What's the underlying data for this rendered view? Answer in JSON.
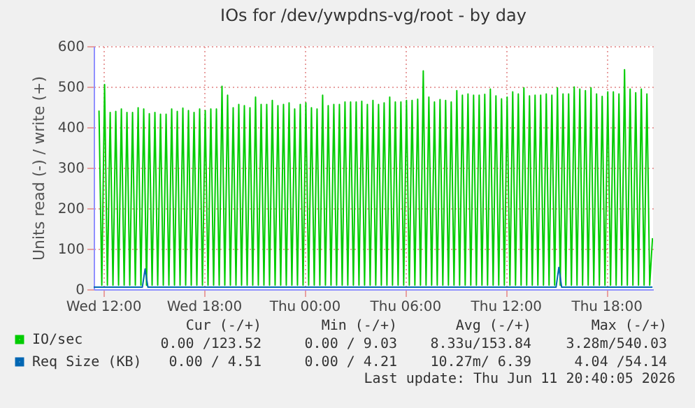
{
  "chart_data": {
    "type": "line",
    "title": "IOs for /dev/ywpdns-vg/root - by day",
    "ylabel": "Units read (-) / write (+)",
    "xlim": [
      "2026-06-10T11:26",
      "2026-06-11T20:47"
    ],
    "xticks": [
      {
        "value": "2026-06-10T12:00",
        "label": "Wed 12:00"
      },
      {
        "value": "2026-06-10T18:00",
        "label": "Wed 18:00"
      },
      {
        "value": "2026-06-11T00:00",
        "label": "Thu 00:00"
      },
      {
        "value": "2026-06-11T06:00",
        "label": "Thu 06:00"
      },
      {
        "value": "2026-06-11T12:00",
        "label": "Thu 12:00"
      },
      {
        "value": "2026-06-11T18:00",
        "label": "Thu 18:00"
      }
    ],
    "ylim": [
      0,
      600
    ],
    "yticks": [
      0,
      100,
      200,
      300,
      400,
      500,
      600
    ],
    "grid": true,
    "legend": "bottom left",
    "marker": "none",
    "line_style": "solid",
    "series": [
      {
        "name": "IO/sec",
        "color": "#00cc00",
        "x": [
          "2026-06-10T11:45",
          "2026-06-10T11:55",
          "2026-06-10T12:05",
          "2026-06-10T12:15",
          "2026-06-10T12:25",
          "2026-06-10T12:35",
          "2026-06-10T12:45",
          "2026-06-10T12:55",
          "2026-06-10T13:05",
          "2026-06-10T13:15",
          "2026-06-10T13:25",
          "2026-06-10T13:35",
          "2026-06-10T13:45",
          "2026-06-10T13:55",
          "2026-06-10T14:05",
          "2026-06-10T14:15",
          "2026-06-10T14:25",
          "2026-06-10T14:35",
          "2026-06-10T14:45",
          "2026-06-10T14:55",
          "2026-06-10T15:05",
          "2026-06-10T15:15",
          "2026-06-10T15:25",
          "2026-06-10T15:35",
          "2026-06-10T15:45",
          "2026-06-10T15:55",
          "2026-06-10T16:05",
          "2026-06-10T16:15",
          "2026-06-10T16:25",
          "2026-06-10T16:35",
          "2026-06-10T16:45",
          "2026-06-10T16:55",
          "2026-06-10T17:05",
          "2026-06-10T17:15",
          "2026-06-10T17:25",
          "2026-06-10T17:35",
          "2026-06-10T17:45",
          "2026-06-10T17:55",
          "2026-06-10T18:05",
          "2026-06-10T18:15",
          "2026-06-10T18:25",
          "2026-06-10T18:35",
          "2026-06-10T18:45",
          "2026-06-10T18:55",
          "2026-06-10T19:05",
          "2026-06-10T19:15",
          "2026-06-10T19:25",
          "2026-06-10T19:35",
          "2026-06-10T19:45",
          "2026-06-10T19:55",
          "2026-06-10T20:05",
          "2026-06-10T20:15",
          "2026-06-10T20:25",
          "2026-06-10T20:35",
          "2026-06-10T20:45",
          "2026-06-10T20:55",
          "2026-06-10T21:05",
          "2026-06-10T21:15",
          "2026-06-10T21:25",
          "2026-06-10T21:35",
          "2026-06-10T21:45",
          "2026-06-10T21:55",
          "2026-06-10T22:05",
          "2026-06-10T22:15",
          "2026-06-10T22:25",
          "2026-06-10T22:35",
          "2026-06-10T22:45",
          "2026-06-10T22:55",
          "2026-06-10T23:05",
          "2026-06-10T23:15",
          "2026-06-10T23:25",
          "2026-06-10T23:35",
          "2026-06-10T23:45",
          "2026-06-10T23:55",
          "2026-06-11T00:05",
          "2026-06-11T00:15",
          "2026-06-11T00:25",
          "2026-06-11T00:35",
          "2026-06-11T00:45",
          "2026-06-11T00:55",
          "2026-06-11T01:05",
          "2026-06-11T01:15",
          "2026-06-11T01:25",
          "2026-06-11T01:35",
          "2026-06-11T01:45",
          "2026-06-11T01:55",
          "2026-06-11T02:05",
          "2026-06-11T02:15",
          "2026-06-11T02:25",
          "2026-06-11T02:35",
          "2026-06-11T02:45",
          "2026-06-11T02:55",
          "2026-06-11T03:05",
          "2026-06-11T03:15",
          "2026-06-11T03:25",
          "2026-06-11T03:35",
          "2026-06-11T03:45",
          "2026-06-11T03:55",
          "2026-06-11T04:05",
          "2026-06-11T04:15",
          "2026-06-11T04:25",
          "2026-06-11T04:35",
          "2026-06-11T04:45",
          "2026-06-11T04:55",
          "2026-06-11T05:05",
          "2026-06-11T05:15",
          "2026-06-11T05:25",
          "2026-06-11T05:35",
          "2026-06-11T05:45",
          "2026-06-11T05:55",
          "2026-06-11T06:05",
          "2026-06-11T06:15",
          "2026-06-11T06:25",
          "2026-06-11T06:35",
          "2026-06-11T06:45",
          "2026-06-11T06:55",
          "2026-06-11T07:05",
          "2026-06-11T07:15",
          "2026-06-11T07:25",
          "2026-06-11T07:35",
          "2026-06-11T07:45",
          "2026-06-11T07:55",
          "2026-06-11T08:05",
          "2026-06-11T08:15",
          "2026-06-11T08:25",
          "2026-06-11T08:35",
          "2026-06-11T08:45",
          "2026-06-11T08:55",
          "2026-06-11T09:05",
          "2026-06-11T09:15",
          "2026-06-11T09:25",
          "2026-06-11T09:35",
          "2026-06-11T09:45",
          "2026-06-11T09:55",
          "2026-06-11T10:05",
          "2026-06-11T10:15",
          "2026-06-11T10:25",
          "2026-06-11T10:35",
          "2026-06-11T10:45",
          "2026-06-11T10:55",
          "2026-06-11T11:05",
          "2026-06-11T11:15",
          "2026-06-11T11:25",
          "2026-06-11T11:35",
          "2026-06-11T11:45",
          "2026-06-11T11:55",
          "2026-06-11T12:05",
          "2026-06-11T12:15",
          "2026-06-11T12:25",
          "2026-06-11T12:35",
          "2026-06-11T12:45",
          "2026-06-11T12:55",
          "2026-06-11T13:05",
          "2026-06-11T13:15",
          "2026-06-11T13:25",
          "2026-06-11T13:35",
          "2026-06-11T13:45",
          "2026-06-11T13:55",
          "2026-06-11T14:05",
          "2026-06-11T14:15",
          "2026-06-11T14:25",
          "2026-06-11T14:35",
          "2026-06-11T14:45",
          "2026-06-11T14:55",
          "2026-06-11T15:05",
          "2026-06-11T15:15",
          "2026-06-11T15:25",
          "2026-06-11T15:35",
          "2026-06-11T15:45",
          "2026-06-11T15:55",
          "2026-06-11T16:05",
          "2026-06-11T16:15",
          "2026-06-11T16:25",
          "2026-06-11T16:35",
          "2026-06-11T16:45",
          "2026-06-11T16:55",
          "2026-06-11T17:05",
          "2026-06-11T17:15",
          "2026-06-11T17:25",
          "2026-06-11T17:35",
          "2026-06-11T17:45",
          "2026-06-11T17:55",
          "2026-06-11T18:05",
          "2026-06-11T18:15",
          "2026-06-11T18:25",
          "2026-06-11T18:35",
          "2026-06-11T18:45",
          "2026-06-11T18:55",
          "2026-06-11T19:05",
          "2026-06-11T19:15",
          "2026-06-11T19:25",
          "2026-06-11T19:35",
          "2026-06-11T19:45",
          "2026-06-11T19:55",
          "2026-06-11T20:05",
          "2026-06-11T20:15",
          "2026-06-11T20:25",
          "2026-06-11T20:35",
          "2026-06-11T20:45"
        ],
        "values": [
          441,
          10,
          505,
          10,
          436,
          10,
          439,
          10,
          445,
          10,
          436,
          10,
          436,
          10,
          448,
          10,
          445,
          10,
          433,
          10,
          436,
          10,
          432,
          10,
          432,
          10,
          445,
          10,
          439,
          10,
          447,
          10,
          441,
          10,
          436,
          10,
          445,
          10,
          441,
          10,
          445,
          10,
          445,
          10,
          501,
          10,
          479,
          10,
          448,
          10,
          456,
          10,
          453,
          10,
          448,
          10,
          474,
          10,
          456,
          10,
          456,
          10,
          466,
          10,
          453,
          10,
          456,
          10,
          460,
          10,
          445,
          10,
          456,
          10,
          460,
          10,
          448,
          10,
          445,
          10,
          479,
          10,
          453,
          10,
          456,
          10,
          456,
          10,
          462,
          10,
          462,
          10,
          462,
          10,
          464,
          10,
          456,
          10,
          466,
          10,
          456,
          10,
          460,
          10,
          474,
          10,
          462,
          10,
          462,
          10,
          466,
          10,
          466,
          10,
          469,
          10,
          539,
          10,
          474,
          10,
          462,
          10,
          468,
          10,
          466,
          10,
          462,
          10,
          490,
          10,
          479,
          10,
          482,
          10,
          479,
          10,
          479,
          10,
          481,
          10,
          494,
          10,
          477,
          10,
          470,
          10,
          474,
          10,
          487,
          10,
          482,
          10,
          497,
          10,
          477,
          10,
          479,
          10,
          479,
          10,
          482,
          10,
          479,
          10,
          497,
          10,
          482,
          10,
          482,
          10,
          499,
          10,
          494,
          10,
          490,
          10,
          497,
          10,
          482,
          10,
          476,
          10,
          487,
          10,
          487,
          10,
          482,
          10,
          542,
          10,
          494,
          10,
          485,
          10,
          494,
          10,
          482,
          10,
          126
        ]
      },
      {
        "name": "Req Size (KB)",
        "color": "#0066b3",
        "x": [
          "2026-06-10T11:26",
          "2026-06-10T14:20",
          "2026-06-10T14:30",
          "2026-06-10T14:40",
          "2026-06-11T15:00",
          "2026-06-11T15:10",
          "2026-06-11T15:20",
          "2026-06-11T20:45"
        ],
        "values": [
          5,
          5,
          50,
          5,
          5,
          54,
          5,
          5
        ]
      }
    ],
    "annotations": [
      "Cur (-/+)",
      "Min (-/+)",
      "Avg (-/+)",
      "Max (-/+)",
      "0.00 /123.52",
      "0.00 / 9.03",
      "8.33u/153.84",
      "3.28m/540.03",
      "0.00 / 4.51",
      "0.00 / 4.21",
      "10.27m/ 6.39",
      "4.04 /54.14",
      "Last update:  Thu Jun 11 20:40:05 2026"
    ]
  }
}
